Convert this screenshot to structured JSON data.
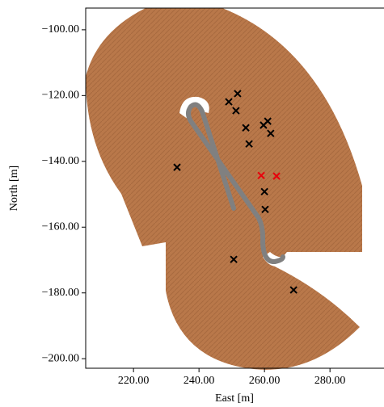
{
  "chart_data": {
    "type": "scatter",
    "x_label": "East [m]",
    "y_label": "North [m]",
    "xlim": [
      205.4,
      296.5
    ],
    "ylim": [
      -202.9,
      -93.4
    ],
    "xticks": [
      {
        "value": 220,
        "label": "220.00"
      },
      {
        "value": 240,
        "label": "240.00"
      },
      {
        "value": 260,
        "label": "260.00"
      },
      {
        "value": 280,
        "label": "280.00"
      }
    ],
    "yticks": [
      {
        "value": -100,
        "label": "−100.00"
      },
      {
        "value": -120,
        "label": "−120.00"
      },
      {
        "value": -140,
        "label": "−140.00"
      },
      {
        "value": -160,
        "label": "−160.00"
      },
      {
        "value": -180,
        "label": "−180.00"
      },
      {
        "value": -200,
        "label": "−200.00"
      }
    ],
    "series": [
      {
        "color": "#000000",
        "x": [
          249.1,
          251.8,
          251.3,
          254.3,
          255.3,
          259.7,
          261.0,
          261.9,
          233.3,
          260.0,
          260.2,
          250.6,
          268.9
        ],
        "values": [
          -121.9,
          -119.4,
          -124.6,
          -129.8,
          -134.7,
          -129.0,
          -127.8,
          -131.5,
          -141.8,
          -149.2,
          -154.6,
          -169.8,
          -179.1
        ]
      },
      {
        "color": "#e8000b",
        "x": [
          259.0,
          263.7
        ],
        "values": [
          -144.3,
          -144.5
        ]
      }
    ]
  }
}
